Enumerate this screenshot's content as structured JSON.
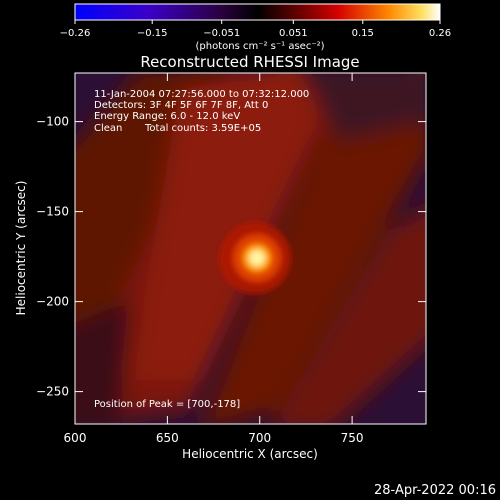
{
  "chart_data": {
    "type": "heatmap",
    "title": "Reconstructed RHESSI Image",
    "xlabel": "Heliocentric X (arcsec)",
    "ylabel": "Heliocentric Y (arcsec)",
    "xlim": [
      600,
      790
    ],
    "ylim": [
      -268,
      -73
    ],
    "x_ticks": [
      "600",
      "650",
      "700",
      "750"
    ],
    "x_tick_values": [
      600,
      650,
      700,
      750
    ],
    "y_ticks": [
      "−100",
      "−150",
      "−200",
      "−250"
    ],
    "y_tick_values": [
      -100,
      -150,
      -200,
      -250
    ],
    "colorbar": {
      "ticks": [
        "−0.26",
        "−0.15",
        "−0.051",
        "0.051",
        "0.15",
        "0.26"
      ],
      "range": [
        -0.26,
        0.26
      ],
      "unit_label": "(photons cm⁻² s⁻¹ asec⁻²)"
    },
    "annotations": {
      "time": "11-Jan-2004 07:27:56.000 to 07:32:12.000",
      "detectors": "Detectors: 3F 4F 5F 6F 7F 8F, Att 0",
      "energy": "Energy Range: 6.0 - 12.0 keV",
      "method": "Clean",
      "counts": "Total counts: 3.59E+05",
      "peak": "Position of Peak = [700,-178]"
    },
    "peak": {
      "x": 700,
      "y": -178,
      "value": 0.26
    },
    "colormap": [
      "#0000ff",
      "#000000",
      "#e00000",
      "#ff9900",
      "#ffffff"
    ]
  },
  "footer": {
    "date": "28-Apr-2022 00:16"
  }
}
